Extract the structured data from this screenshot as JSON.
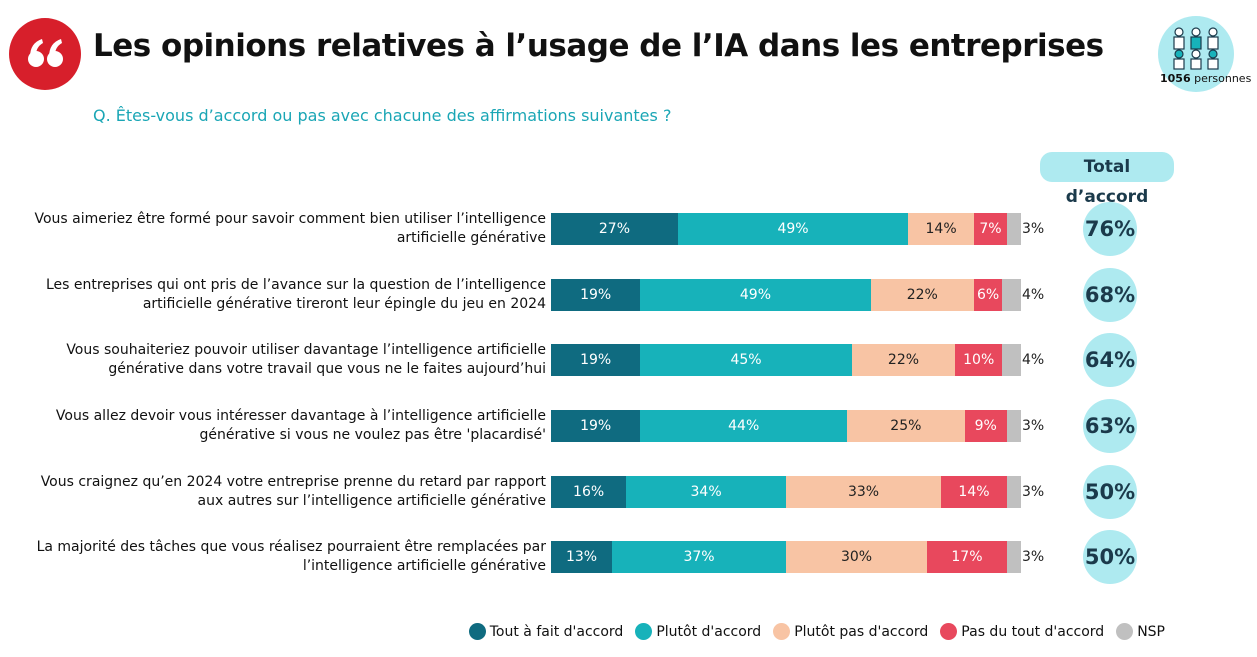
{
  "chart_data": {
    "type": "stacked_barh",
    "title": "Les opinions relatives à l’usage de l’IA dans les entreprises",
    "subtitle": "Q. Êtes-vous d’accord ou pas avec chacune des affirmations suivantes ?",
    "sample": {
      "count": "1056",
      "label": "personnes"
    },
    "categories": [
      "Vous aimeriez être formé pour savoir comment bien utiliser l’intelligence artificielle générative",
      "Les entreprises qui ont pris de l’avance sur la question de l’intelligence artificielle générative tireront leur épingle du jeu en 2024",
      "Vous souhaiteriez pouvoir utiliser davantage l’intelligence artificielle générative dans votre travail que vous ne le faites aujourd’hui",
      "Vous allez devoir vous intéresser davantage à l’intelligence artificielle générative si vous ne voulez pas être 'placardisé'",
      "Vous craignez qu’en 2024 votre entreprise prenne du retard par rapport aux autres sur l’intelligence artificielle générative",
      "La majorité des tâches que vous réalisez pourraient être remplacées par l’intelligence artificielle générative"
    ],
    "xlim": [
      0,
      100
    ],
    "series": [
      {
        "name": "Tout à fait d'accord",
        "color": "#0f6b80",
        "values": [
          27,
          19,
          19,
          19,
          16,
          13
        ],
        "value_labels": [
          "27%",
          "19%",
          "19%",
          "19%",
          "16%",
          "13%"
        ]
      },
      {
        "name": "Plutôt d'accord",
        "color": "#17b2ba",
        "values": [
          49,
          49,
          45,
          44,
          34,
          37
        ],
        "value_labels": [
          "49%",
          "49%",
          "45%",
          "44%",
          "34%",
          "37%"
        ]
      },
      {
        "name": "Plutôt pas d'accord",
        "color": "#f8c4a4",
        "values": [
          14,
          22,
          22,
          25,
          33,
          30
        ],
        "value_labels": [
          "14%",
          "22%",
          "22%",
          "25%",
          "33%",
          "30%"
        ]
      },
      {
        "name": "Pas du tout d'accord",
        "color": "#e8485d",
        "values": [
          7,
          6,
          10,
          9,
          14,
          17
        ],
        "value_labels": [
          "7%",
          "6%",
          "10%",
          "9%",
          "14%",
          "17%"
        ]
      },
      {
        "name": "NSP",
        "color": "#c0c0c0",
        "values": [
          3,
          4,
          4,
          3,
          3,
          3
        ],
        "value_labels": [
          "3%",
          "4%",
          "4%",
          "3%",
          "3%",
          "3%"
        ]
      }
    ],
    "totals": {
      "title": "Total d’accord",
      "values": [
        76,
        68,
        64,
        63,
        50,
        50
      ],
      "value_labels": [
        "76%",
        "68%",
        "64%",
        "63%",
        "50%",
        "50%"
      ]
    },
    "legend": "bottom-right"
  }
}
